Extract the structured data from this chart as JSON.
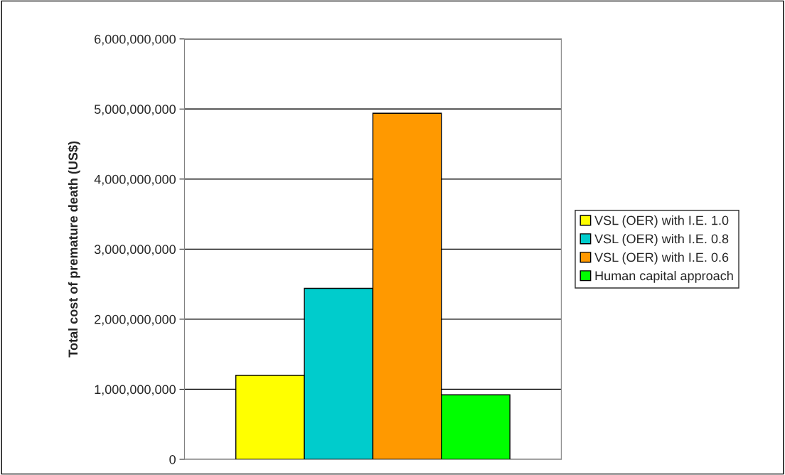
{
  "chart_data": {
    "type": "bar",
    "ylabel": "Total cost of premature death (US$)",
    "categories": [
      null
    ],
    "series": [
      {
        "name": "VSL (OER) with I.E. 1.0",
        "color": "#ffff00",
        "values": [
          1200000000
        ]
      },
      {
        "name": "VSL (OER) with I.E. 0.8",
        "color": "#00cccc",
        "values": [
          2440000000
        ]
      },
      {
        "name": "VSL (OER) with I.E. 0.6",
        "color": "#ff9900",
        "values": [
          4940000000
        ]
      },
      {
        "name": "Human capital approach",
        "color": "#00ff00",
        "values": [
          920000000
        ]
      }
    ],
    "ylim": [
      0,
      6000000000
    ],
    "yticks": [
      {
        "value": 0,
        "label": "0"
      },
      {
        "value": 1000000000,
        "label": "1,000,000,000"
      },
      {
        "value": 2000000000,
        "label": "2,000,000,000"
      },
      {
        "value": 3000000000,
        "label": "3,000,000,000"
      },
      {
        "value": 4000000000,
        "label": "4,000,000,000"
      },
      {
        "value": 5000000000,
        "label": "5,000,000,000"
      },
      {
        "value": 6000000000,
        "label": "6,000,000,000"
      }
    ],
    "grid": "y",
    "legend": "right"
  }
}
